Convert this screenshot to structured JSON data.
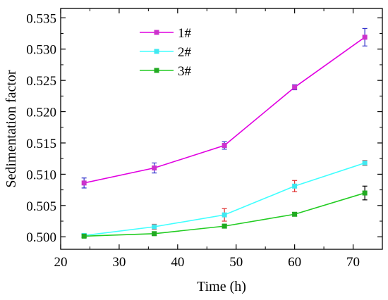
{
  "chart_data": {
    "type": "line",
    "xlabel": "Time (h)",
    "ylabel": "Sedimentation factor",
    "xlim": [
      20,
      75
    ],
    "ylim": [
      0.498,
      0.5365
    ],
    "xticks": [
      "20",
      "30",
      "40",
      "50",
      "60",
      "70"
    ],
    "yticks": [
      "0.500",
      "0.505",
      "0.510",
      "0.515",
      "0.520",
      "0.525",
      "0.530",
      "0.535"
    ],
    "x": [
      24,
      36,
      48,
      60,
      72
    ],
    "series": [
      {
        "name": "1#",
        "color": "#e100e1",
        "marker_color": "#cc33cc",
        "error_color": "#3333cc",
        "values": [
          0.5086,
          0.511,
          0.5146,
          0.5239,
          0.5319
        ],
        "errors": [
          0.0008,
          0.0008,
          0.0006,
          0.0004,
          0.0014
        ]
      },
      {
        "name": "2#",
        "color": "#40ffff",
        "marker_color": "#40e8f0",
        "error_color": "#e03030",
        "values": [
          0.5002,
          0.5016,
          0.5035,
          0.5081,
          0.5118
        ],
        "errors": [
          0.0003,
          0.0004,
          0.001,
          0.0009,
          0.0004
        ]
      },
      {
        "name": "3#",
        "color": "#22cc22",
        "marker_color": "#22aa22",
        "error_color": "#000000",
        "values": [
          0.5001,
          0.5005,
          0.5017,
          0.5036,
          0.507
        ],
        "errors": [
          0.0002,
          0.0003,
          0.0003,
          0.0003,
          0.0011
        ]
      }
    ],
    "legend_position": "top-left",
    "grid": false
  }
}
